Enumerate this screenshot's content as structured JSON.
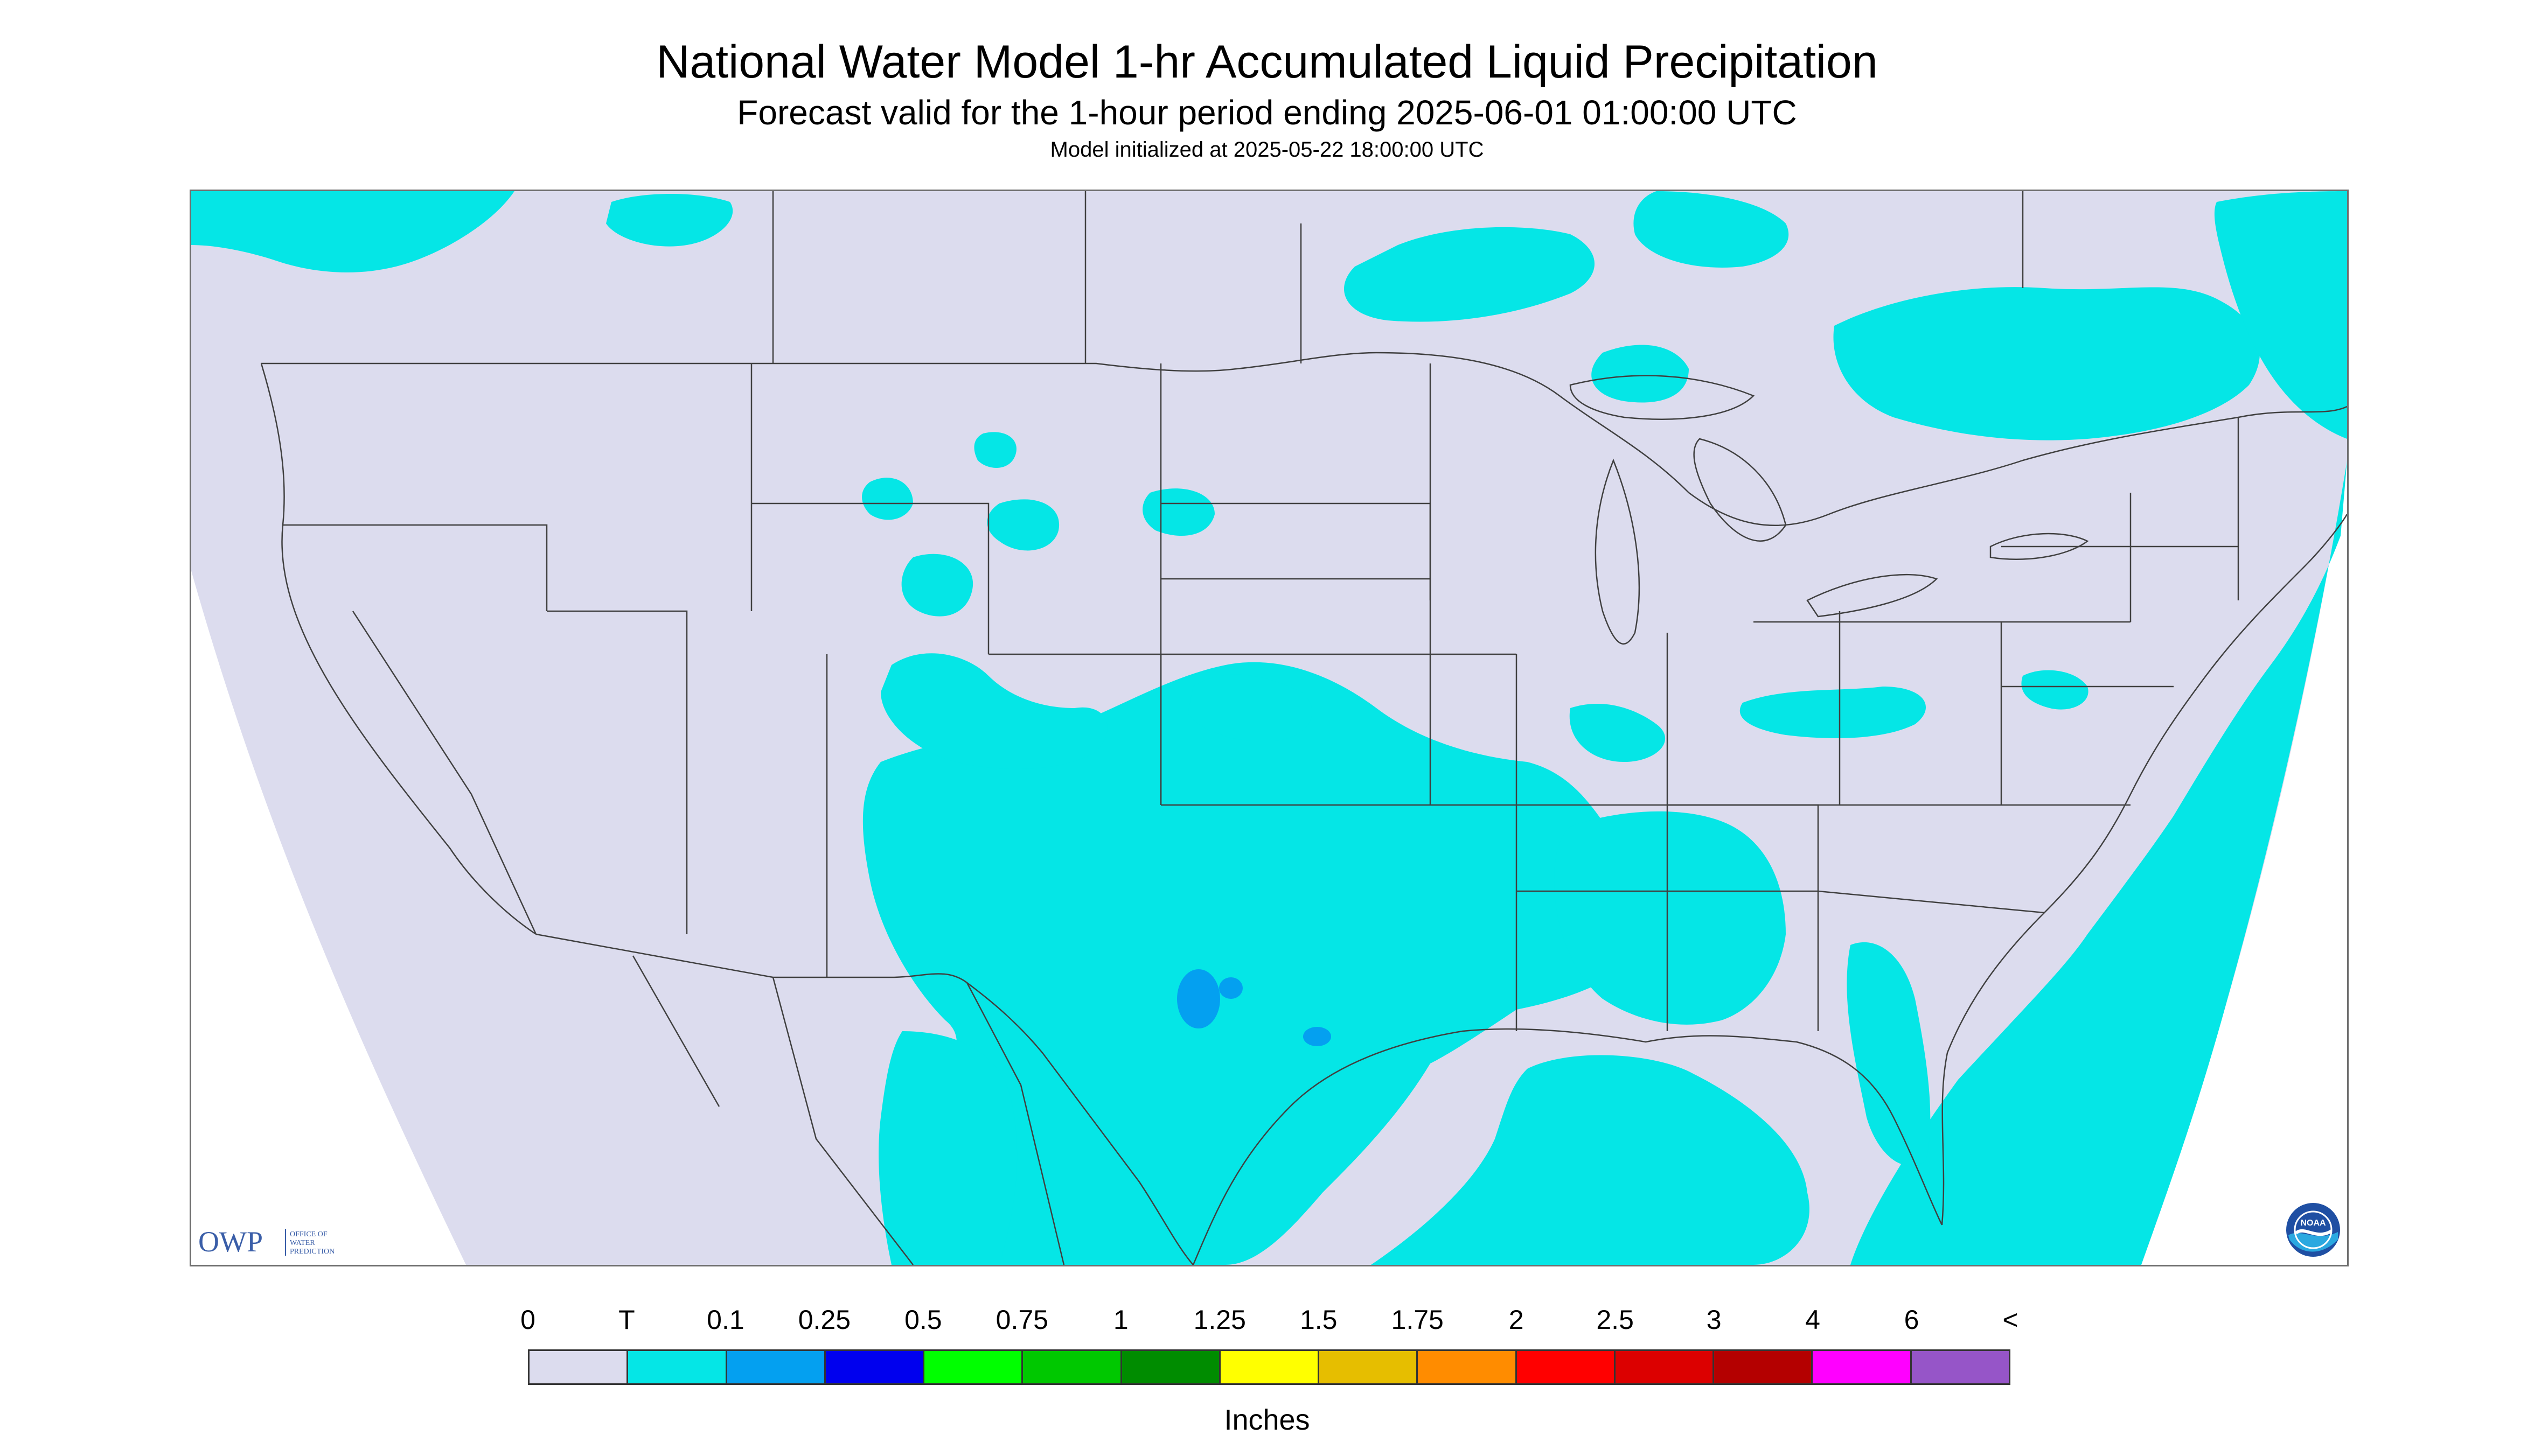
{
  "header": {
    "title": "National Water Model 1-hr Accumulated Liquid Precipitation",
    "subtitle": "Forecast valid for the 1-hour period ending 2025-06-01 01:00:00 UTC",
    "init_line": "Model initialized at 2025-05-22 18:00:00 UTC"
  },
  "logos": {
    "owp_mark": "OWP",
    "owp_text": [
      "OFFICE OF",
      "WATER",
      "PREDICTION"
    ],
    "noaa_text": "NOAA"
  },
  "legend": {
    "ticks": [
      "0",
      "T",
      "0.1",
      "0.25",
      "0.5",
      "0.75",
      "1",
      "1.25",
      "1.5",
      "1.75",
      "2",
      "2.5",
      "3",
      "4",
      "6",
      "<"
    ],
    "colors": [
      "#dcdcee",
      "#05e6e6",
      "#04a0f0",
      "#0000ee",
      "#00ff00",
      "#00c800",
      "#008c00",
      "#ffff00",
      "#e6be00",
      "#ff8c00",
      "#ff0000",
      "#dc0000",
      "#b40000",
      "#ff00ff",
      "#9655c8"
    ],
    "units": "Inches"
  },
  "map": {
    "no_data_color": "#ffffff",
    "land_background_color": "#dcdcee",
    "boundary_color": "#404040"
  }
}
